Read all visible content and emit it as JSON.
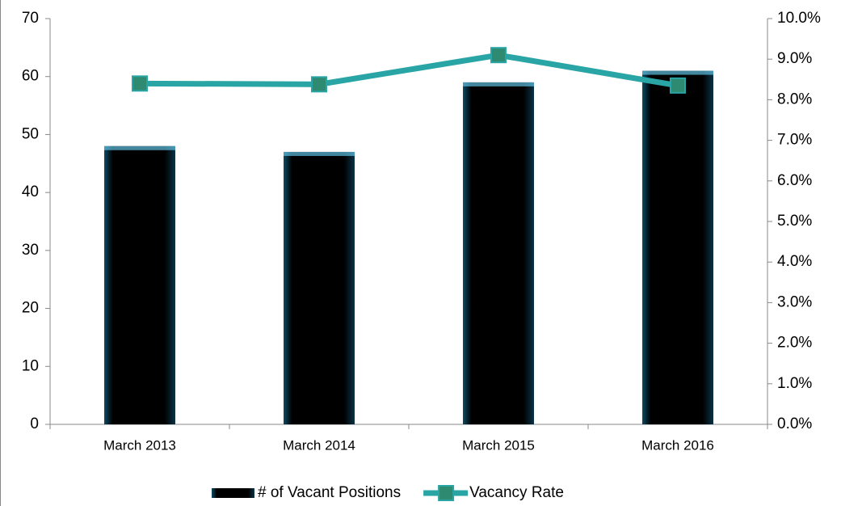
{
  "chart_data": {
    "type": "bar",
    "categories": [
      "March 2013",
      "March 2014",
      "March 2015",
      "March 2016"
    ],
    "series": [
      {
        "name": "# of Vacant Positions",
        "type": "bar",
        "color": "#1a8ab5",
        "values": [
          48,
          47,
          59,
          61
        ]
      },
      {
        "name": "Vacancy Rate",
        "type": "line",
        "axis": "y2",
        "color": "#2aa5a5",
        "marker_color": "#2e8b72",
        "values": [
          8.4,
          8.38,
          9.1,
          8.35
        ]
      }
    ],
    "ylim": [
      0,
      70
    ],
    "yticks": [
      0,
      10,
      20,
      30,
      40,
      50,
      60,
      70
    ],
    "y2lim": [
      0,
      10
    ],
    "y2ticks": [
      {
        "value": 0,
        "label": "0.0%"
      },
      {
        "value": 1,
        "label": "1.0%"
      },
      {
        "value": 2,
        "label": "2.0%"
      },
      {
        "value": 3,
        "label": "3.0%"
      },
      {
        "value": 4,
        "label": "4.0%"
      },
      {
        "value": 5,
        "label": "5.0%"
      },
      {
        "value": 6,
        "label": "6.0%"
      },
      {
        "value": 7,
        "label": "7.0%"
      },
      {
        "value": 8,
        "label": "8.0%"
      },
      {
        "value": 9,
        "label": "9.0%"
      },
      {
        "value": 10,
        "label": "10.0%"
      }
    ],
    "legend": "bottom",
    "grid": false
  }
}
